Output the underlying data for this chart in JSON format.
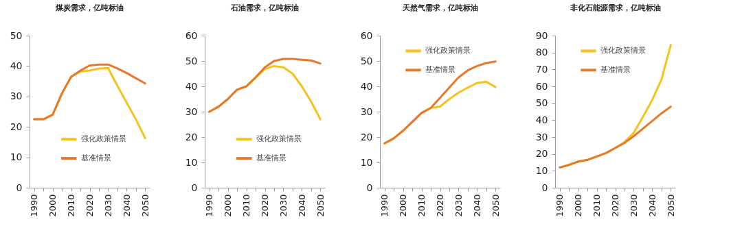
{
  "chart_data": [
    {
      "type": "line",
      "title": "煤炭需求，亿吨标油",
      "legend": "bottom",
      "line_style": "solid",
      "grid": false,
      "x": [
        1990,
        1995,
        2000,
        2005,
        2010,
        2015,
        2020,
        2025,
        2030,
        2035,
        2040,
        2045,
        2050
      ],
      "xlim": [
        1987.5,
        2052.5
      ],
      "xticks": [
        1990,
        {
          "value": 1995,
          "label": null
        },
        2000,
        {
          "value": 2005,
          "label": null
        },
        2010,
        {
          "value": 2015,
          "label": null
        },
        2020,
        {
          "value": 2025,
          "label": null
        },
        2030,
        {
          "value": 2035,
          "label": null
        },
        2040,
        {
          "value": 2045,
          "label": null
        },
        2050
      ],
      "ylim": [
        0,
        50
      ],
      "yticks": [
        0,
        10,
        20,
        30,
        40,
        50
      ],
      "series": [
        {
          "name": "强化政策情景",
          "color": "#f5c31c",
          "values": [
            22.5,
            22.5,
            24,
            31,
            36.5,
            38.2,
            38.5,
            39.2,
            39.3,
            33.5,
            28,
            22.5,
            16.3
          ]
        },
        {
          "name": "基准情景",
          "color": "#e8792a",
          "values": [
            22.5,
            22.5,
            24,
            31,
            36.5,
            38.5,
            40.2,
            40.5,
            40.5,
            39.2,
            37.7,
            36,
            34.3
          ]
        }
      ]
    },
    {
      "type": "line",
      "title": "石油需求，亿吨标油",
      "legend": "bottom",
      "line_style": "solid",
      "grid": false,
      "x": [
        1990,
        1995,
        2000,
        2005,
        2010,
        2015,
        2020,
        2025,
        2030,
        2035,
        2040,
        2045,
        2050
      ],
      "xlim": [
        1987.5,
        2052.5
      ],
      "xticks": [
        1990,
        {
          "value": 1995,
          "label": null
        },
        2000,
        {
          "value": 2005,
          "label": null
        },
        2010,
        {
          "value": 2015,
          "label": null
        },
        2020,
        {
          "value": 2025,
          "label": null
        },
        2030,
        {
          "value": 2035,
          "label": null
        },
        2040,
        {
          "value": 2045,
          "label": null
        },
        2050
      ],
      "ylim": [
        0,
        60
      ],
      "yticks": [
        0,
        10,
        20,
        30,
        40,
        50,
        60
      ],
      "series": [
        {
          "name": "强化政策情景",
          "color": "#f5c31c",
          "values": [
            30,
            32,
            35,
            38.7,
            40,
            43.5,
            46.8,
            48,
            47.5,
            45,
            40,
            34,
            27
          ]
        },
        {
          "name": "基准情景",
          "color": "#e8792a",
          "values": [
            30,
            32,
            35,
            38.7,
            40,
            43.5,
            47.5,
            50,
            50.8,
            50.8,
            50.5,
            50.2,
            49
          ]
        }
      ]
    },
    {
      "type": "line",
      "title": "天然气需求，亿吨标油",
      "legend": "top left",
      "line_style": "solid",
      "grid": false,
      "x": [
        1990,
        1995,
        2000,
        2005,
        2010,
        2015,
        2020,
        2025,
        2030,
        2035,
        2040,
        2045,
        2050
      ],
      "xlim": [
        1987.5,
        2052.5
      ],
      "xticks": [
        1990,
        {
          "value": 1995,
          "label": null
        },
        2000,
        {
          "value": 2005,
          "label": null
        },
        2010,
        {
          "value": 2015,
          "label": null
        },
        2020,
        {
          "value": 2025,
          "label": null
        },
        2030,
        {
          "value": 2035,
          "label": null
        },
        2040,
        {
          "value": 2045,
          "label": null
        },
        2050
      ],
      "ylim": [
        0,
        60
      ],
      "yticks": [
        0,
        10,
        20,
        30,
        40,
        50,
        60
      ],
      "series": [
        {
          "name": "强化政策情景",
          "color": "#f5c31c",
          "values": [
            17.5,
            19.5,
            22.5,
            26,
            29.5,
            31.5,
            32,
            35,
            37.5,
            39.5,
            41.3,
            41.8,
            39.7
          ]
        },
        {
          "name": "基准情景",
          "color": "#e8792a",
          "values": [
            17.5,
            19.5,
            22.5,
            26,
            29.5,
            31.5,
            35.5,
            39.5,
            43.5,
            46.3,
            48,
            49.2,
            49.8
          ]
        }
      ]
    },
    {
      "type": "line",
      "title": "非化石能源需求，亿吨标油",
      "legend": "top left",
      "line_style": "solid",
      "grid": false,
      "x": [
        1990,
        1995,
        2000,
        2005,
        2010,
        2015,
        2020,
        2025,
        2030,
        2035,
        2040,
        2045,
        2050
      ],
      "xlim": [
        1987.5,
        2052.5
      ],
      "xticks": [
        1990,
        {
          "value": 1995,
          "label": null
        },
        2000,
        {
          "value": 2005,
          "label": null
        },
        2010,
        {
          "value": 2015,
          "label": null
        },
        2020,
        {
          "value": 2025,
          "label": null
        },
        2030,
        {
          "value": 2035,
          "label": null
        },
        2040,
        {
          "value": 2045,
          "label": null
        },
        2050
      ],
      "ylim": [
        0,
        90
      ],
      "yticks": [
        0,
        10,
        20,
        30,
        40,
        50,
        60,
        70,
        80,
        90
      ],
      "series": [
        {
          "name": "强化政策情景",
          "color": "#f5c31c",
          "values": [
            12,
            13.5,
            15.5,
            16.5,
            18.5,
            20.5,
            23.5,
            27,
            32.5,
            42,
            52,
            64,
            84.5
          ]
        },
        {
          "name": "基准情景",
          "color": "#e8792a",
          "values": [
            12,
            13.5,
            15.5,
            16.5,
            18.5,
            20.5,
            23.5,
            26.5,
            30.5,
            35,
            39.5,
            44,
            48
          ]
        }
      ]
    }
  ]
}
